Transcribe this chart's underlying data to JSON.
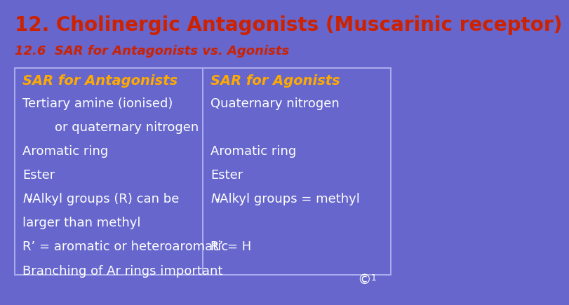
{
  "bg_color": "#6666cc",
  "title": "12. Cholinergic Antagonists (Muscarinic receptor)",
  "title_color": "#cc2200",
  "title_fontsize": 20,
  "subtitle": "12.6  SAR for Antagonists vs. Agonists",
  "subtitle_color": "#cc2200",
  "subtitle_fontsize": 13,
  "table_border_color": "#aaaaee",
  "col1_header": "SAR for Antagonists",
  "col2_header": "SAR for Agonists",
  "header_color": "#ffaa00",
  "header_fontsize": 14,
  "body_color": "#ffffff",
  "body_fontsize": 13,
  "copyright": "©",
  "superscript": "1"
}
